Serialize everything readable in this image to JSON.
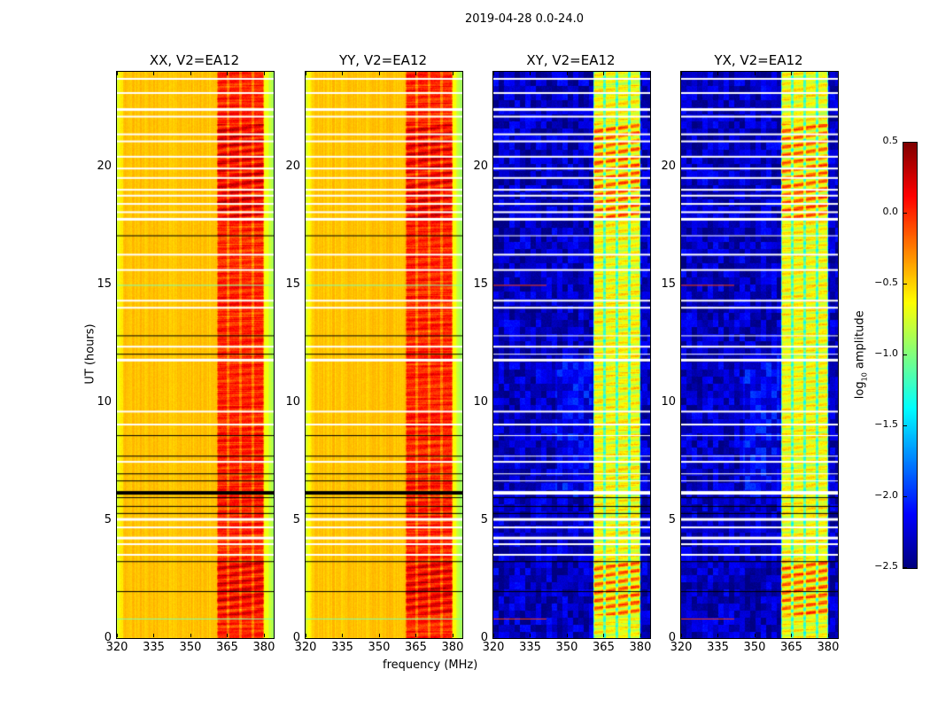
{
  "figure_title": "2019-04-28 0.0-24.0",
  "chart_data": {
    "type": "heatmap",
    "title": "2019-04-28 0.0-24.0",
    "xlabel": "frequency (MHz)",
    "ylabel": "UT (hours)",
    "xlim": [
      320,
      384
    ],
    "ylim": [
      0,
      24
    ],
    "xticks": [
      320,
      335,
      350,
      365,
      380
    ],
    "yticks": [
      0,
      5,
      10,
      15,
      20
    ],
    "colormap": "jet",
    "colorbar": {
      "label": "log10 amplitude",
      "label_base": "log",
      "label_sub": "10",
      "label_rest": " amplitude",
      "clim": [
        -2.5,
        0.5
      ],
      "ticks": [
        "0.5",
        "0.0",
        "−0.5",
        "−1.0",
        "−1.5",
        "−2.0",
        "−2.5"
      ],
      "tick_values": [
        0.5,
        0.0,
        -0.5,
        -1.0,
        -1.5,
        -2.0,
        -2.5
      ]
    },
    "band_MHz": [
      360.5,
      380
    ],
    "band_gaps_MHz": [
      365.2,
      370.3,
      375.3
    ],
    "panels": [
      {
        "title": "XX, V2=EA12",
        "background_log_amp": -0.45,
        "band_log_amp": -0.05,
        "peak_log_amp": 0.3
      },
      {
        "title": "YY, V2=EA12",
        "background_log_amp": -0.45,
        "band_log_amp": -0.05,
        "peak_log_amp": 0.3
      },
      {
        "title": "XY, V2=EA12",
        "background_log_amp": -2.3,
        "band_log_amp": -0.8,
        "peak_log_amp": -0.05
      },
      {
        "title": "YX, V2=EA12",
        "background_log_amp": -2.3,
        "band_log_amp": -0.8,
        "peak_log_amp": -0.05
      }
    ],
    "flagged_hours_white": [
      23.7,
      23.1,
      22.4,
      22.1,
      21.35,
      21.05,
      20.4,
      19.9,
      19.5,
      19.0,
      18.75,
      18.4,
      18.05,
      17.75,
      16.25,
      15.6,
      14.3,
      14.0,
      12.35,
      11.78,
      9.6,
      9.05,
      7.47,
      5.03,
      4.69,
      4.24,
      3.98,
      3.53
    ],
    "flagged_hours_black": [
      17.07,
      12.83,
      12.05,
      8.6,
      7.73,
      6.98,
      6.68,
      6.23,
      5.97,
      5.6,
      5.3,
      3.26,
      1.99
    ],
    "rfi_hours": [
      14.97,
      0.83
    ]
  }
}
